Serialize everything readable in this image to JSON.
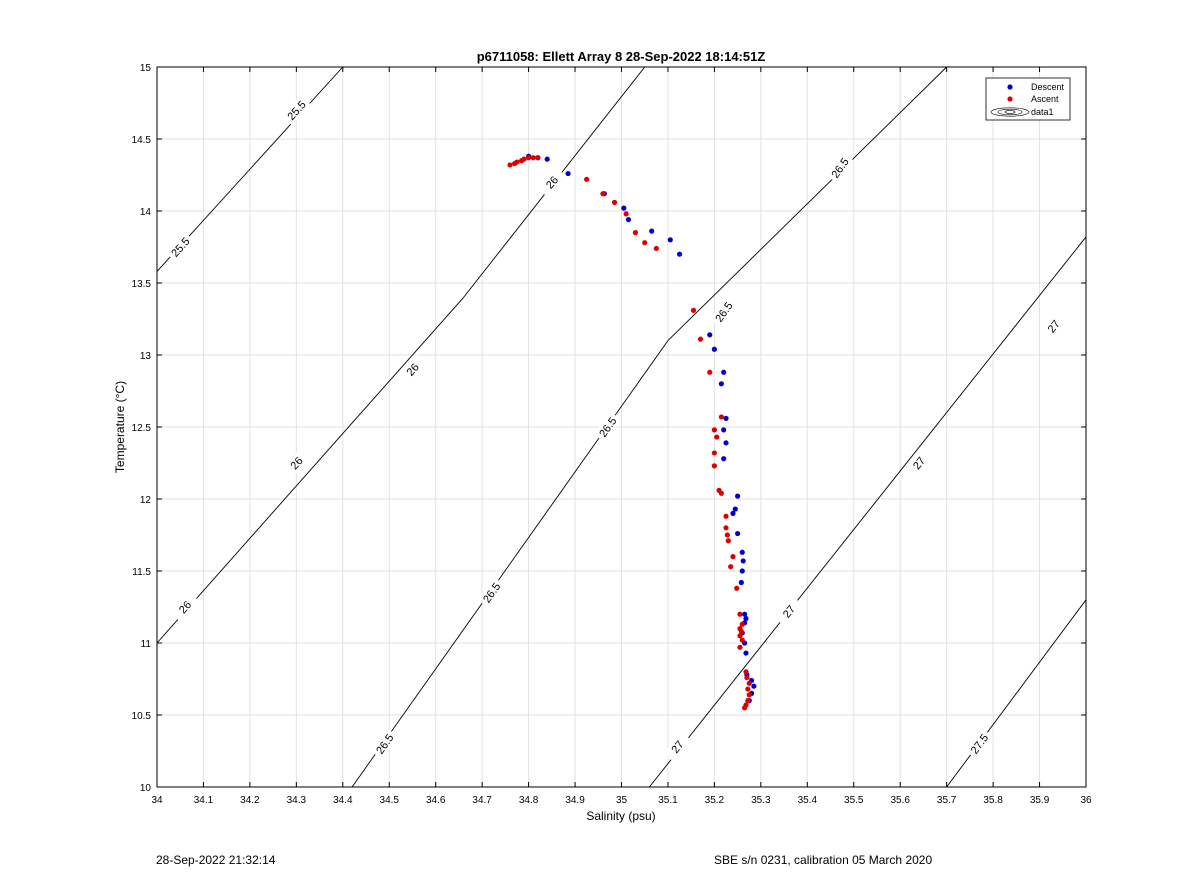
{
  "chart_data": {
    "type": "scatter",
    "title": "p6711058: Ellett Array 8 28-Sep-2022 18:14:51Z",
    "xlabel": "Salinity (psu)",
    "ylabel": "Temperature (°C)",
    "xlim": [
      34,
      36
    ],
    "ylim": [
      10,
      15
    ],
    "grid": true,
    "legend_position": "top-right",
    "x_ticks": [
      "34",
      "34.1",
      "34.2",
      "34.3",
      "34.4",
      "34.5",
      "34.6",
      "34.7",
      "34.8",
      "34.9",
      "35",
      "35.1",
      "35.2",
      "35.3",
      "35.4",
      "35.5",
      "35.6",
      "35.7",
      "35.8",
      "35.9",
      "36"
    ],
    "y_ticks": [
      "10",
      "10.5",
      "11",
      "11.5",
      "12",
      "12.5",
      "13",
      "13.5",
      "14",
      "14.5",
      "15"
    ],
    "series": [
      {
        "name": "Descent",
        "color": "#0000cc",
        "points": [
          [
            34.8,
            14.38
          ],
          [
            34.82,
            14.37
          ],
          [
            34.84,
            14.36
          ],
          [
            34.885,
            14.26
          ],
          [
            34.963,
            14.12
          ],
          [
            35.005,
            14.02
          ],
          [
            35.015,
            13.94
          ],
          [
            35.065,
            13.86
          ],
          [
            35.105,
            13.8
          ],
          [
            35.125,
            13.7
          ],
          [
            35.19,
            13.14
          ],
          [
            35.2,
            13.04
          ],
          [
            35.215,
            12.8
          ],
          [
            35.22,
            12.88
          ],
          [
            35.225,
            12.56
          ],
          [
            35.22,
            12.48
          ],
          [
            35.225,
            12.39
          ],
          [
            35.22,
            12.28
          ],
          [
            35.25,
            12.02
          ],
          [
            35.245,
            11.93
          ],
          [
            35.24,
            11.9
          ],
          [
            35.25,
            11.76
          ],
          [
            35.26,
            11.63
          ],
          [
            35.262,
            11.57
          ],
          [
            35.26,
            11.5
          ],
          [
            35.258,
            11.42
          ],
          [
            35.265,
            11.2
          ],
          [
            35.268,
            11.17
          ],
          [
            35.265,
            11.14
          ],
          [
            35.26,
            11.07
          ],
          [
            35.265,
            11.0
          ],
          [
            35.268,
            10.93
          ],
          [
            35.27,
            10.78
          ],
          [
            35.28,
            10.74
          ],
          [
            35.285,
            10.7
          ],
          [
            35.28,
            10.65
          ],
          [
            35.275,
            10.6
          ]
        ]
      },
      {
        "name": "Ascent",
        "color": "#dd0000",
        "points": [
          [
            34.76,
            14.32
          ],
          [
            34.77,
            14.33
          ],
          [
            34.775,
            14.34
          ],
          [
            34.785,
            14.35
          ],
          [
            34.79,
            14.36
          ],
          [
            34.8,
            14.37
          ],
          [
            34.81,
            14.37
          ],
          [
            34.82,
            14.37
          ],
          [
            34.925,
            14.22
          ],
          [
            34.96,
            14.12
          ],
          [
            34.985,
            14.06
          ],
          [
            35.01,
            13.98
          ],
          [
            35.03,
            13.85
          ],
          [
            35.05,
            13.78
          ],
          [
            35.075,
            13.74
          ],
          [
            35.155,
            13.31
          ],
          [
            35.17,
            13.11
          ],
          [
            35.19,
            12.88
          ],
          [
            35.215,
            12.57
          ],
          [
            35.2,
            12.48
          ],
          [
            35.205,
            12.43
          ],
          [
            35.2,
            12.32
          ],
          [
            35.2,
            12.23
          ],
          [
            35.21,
            12.06
          ],
          [
            35.215,
            12.04
          ],
          [
            35.225,
            11.88
          ],
          [
            35.225,
            11.8
          ],
          [
            35.228,
            11.75
          ],
          [
            35.23,
            11.71
          ],
          [
            35.24,
            11.6
          ],
          [
            35.235,
            11.53
          ],
          [
            35.248,
            11.38
          ],
          [
            35.255,
            11.2
          ],
          [
            35.26,
            11.13
          ],
          [
            35.255,
            11.1
          ],
          [
            35.258,
            11.08
          ],
          [
            35.255,
            11.05
          ],
          [
            35.26,
            11.02
          ],
          [
            35.255,
            10.97
          ],
          [
            35.268,
            10.8
          ],
          [
            35.27,
            10.76
          ],
          [
            35.275,
            10.72
          ],
          [
            35.272,
            10.68
          ],
          [
            35.275,
            10.64
          ],
          [
            35.272,
            10.6
          ],
          [
            35.268,
            10.57
          ],
          [
            35.265,
            10.55
          ]
        ]
      }
    ],
    "contours": [
      {
        "label": "25.5",
        "lines": [
          [
            [
              34.0,
              13.58
            ],
            [
              34.4,
              15.0
            ]
          ]
        ],
        "labels_at": [
          [
            34.05,
            13.75
          ],
          [
            34.3,
            14.7
          ]
        ]
      },
      {
        "label": "26",
        "lines": [
          [
            [
              34.0,
              11.0
            ],
            [
              34.66,
              13.4
            ]
          ],
          [
            [
              34.66,
              13.4
            ],
            [
              35.05,
              15.0
            ]
          ]
        ],
        "labels_at": [
          [
            34.06,
            11.25
          ],
          [
            34.3,
            12.25
          ],
          [
            34.55,
            12.9
          ],
          [
            34.85,
            14.2
          ]
        ]
      },
      {
        "label": "26.5",
        "lines": [
          [
            [
              34.42,
              10.0
            ],
            [
              35.1,
              13.1
            ]
          ],
          [
            [
              35.1,
              13.1
            ],
            [
              35.7,
              15.0
            ]
          ]
        ],
        "labels_at": [
          [
            34.49,
            10.3
          ],
          [
            34.72,
            11.35
          ],
          [
            34.97,
            12.5
          ],
          [
            35.22,
            13.3
          ],
          [
            35.47,
            14.3
          ]
        ]
      },
      {
        "label": "27",
        "lines": [
          [
            [
              35.06,
              10.0
            ],
            [
              36.0,
              13.82
            ]
          ]
        ],
        "labels_at": [
          [
            35.12,
            10.28
          ],
          [
            35.36,
            11.22
          ],
          [
            35.64,
            12.25
          ],
          [
            35.93,
            13.2
          ]
        ]
      },
      {
        "label": "27.5",
        "lines": [
          [
            [
              35.7,
              10.0
            ],
            [
              36.0,
              11.3
            ]
          ]
        ],
        "labels_at": [
          [
            35.77,
            10.3
          ]
        ]
      }
    ],
    "legend": [
      {
        "label": "Descent",
        "marker": "dot",
        "color": "#0000cc"
      },
      {
        "label": "Ascent",
        "marker": "dot",
        "color": "#dd0000"
      },
      {
        "label": "data1",
        "marker": "contour-icon",
        "color": "#000000"
      }
    ]
  },
  "footer": {
    "left": "28-Sep-2022 21:32:14",
    "right": "SBE s/n 0231, calibration 05 March 2020"
  }
}
